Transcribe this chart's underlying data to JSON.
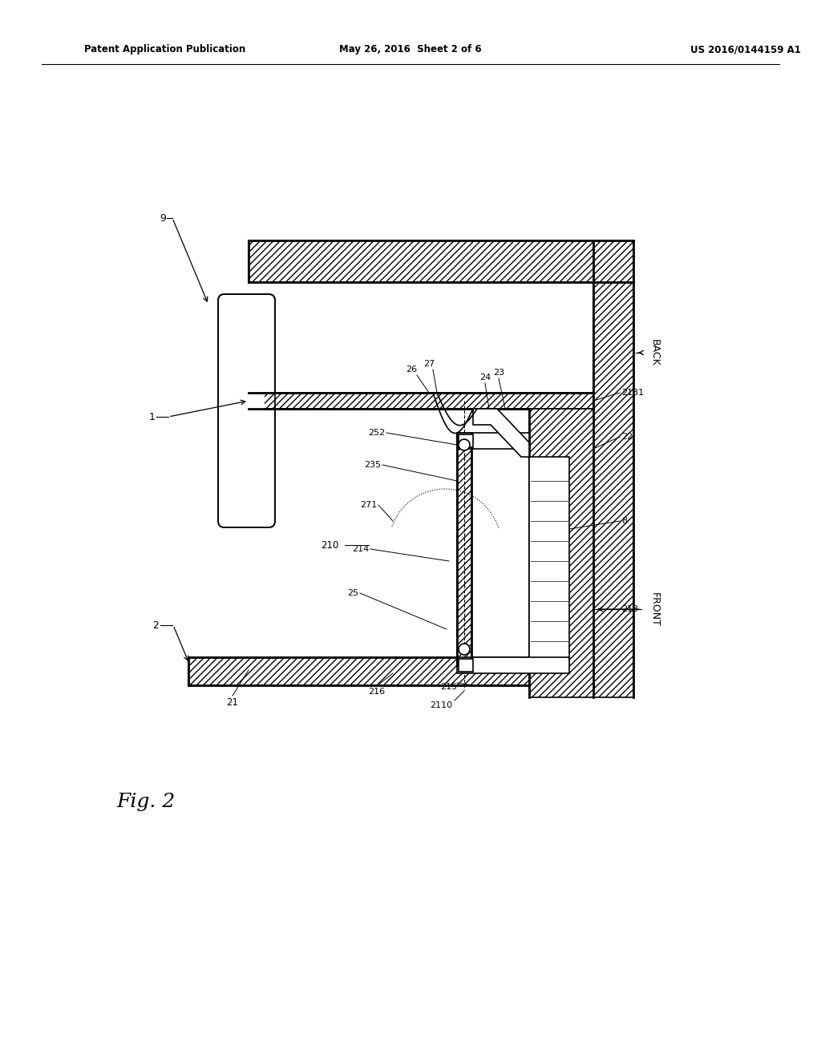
{
  "bg_color": "#ffffff",
  "title_left": "Patent Application Publication",
  "title_mid": "May 26, 2016  Sheet 2 of 6",
  "title_right": "US 2016/0144159 A1",
  "fig_label": "Fig. 2"
}
